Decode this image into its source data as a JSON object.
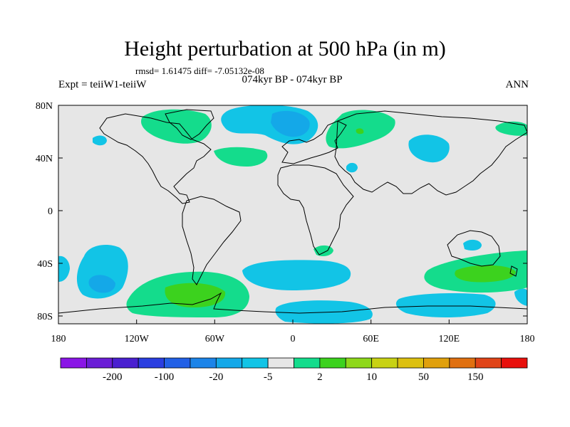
{
  "title": "Height perturbation at 500 hPa (in m)",
  "stats": "rmsd= 1.61475 diff= -7.05132e-08",
  "subtitle": "074kyr BP - 074kyr BP",
  "experiment": "Expt = teiiW1-teiiW",
  "season": "ANN",
  "lat_ticks": [
    "80N",
    "40N",
    "0",
    "40S",
    "80S"
  ],
  "lon_ticks": [
    "180",
    "120W",
    "60W",
    "0",
    "60E",
    "120E",
    "180"
  ],
  "colorbar": {
    "colors": [
      "#8a16e6",
      "#6a1ed6",
      "#4a20d0",
      "#2a3ee0",
      "#2260e6",
      "#1c84e8",
      "#14a8e8",
      "#12c4e6",
      "#e6e6e6",
      "#14dc8c",
      "#3cd21e",
      "#8ed81a",
      "#c8d214",
      "#dcc010",
      "#e0a00c",
      "#e07010",
      "#e04418",
      "#e8100c"
    ],
    "labels": [
      "-200",
      "-100",
      "-20",
      "-5",
      "2",
      "10",
      "50",
      "150"
    ]
  },
  "colors": {
    "ocean_bg": "#e6e6e6",
    "blue_anomaly": "#12c4e6",
    "dark_blue_anomaly": "#14a8e8",
    "mid_blue_anomaly": "#1c84e8",
    "green_anomaly": "#14dc8c",
    "bright_green_anomaly": "#3cd21e"
  }
}
